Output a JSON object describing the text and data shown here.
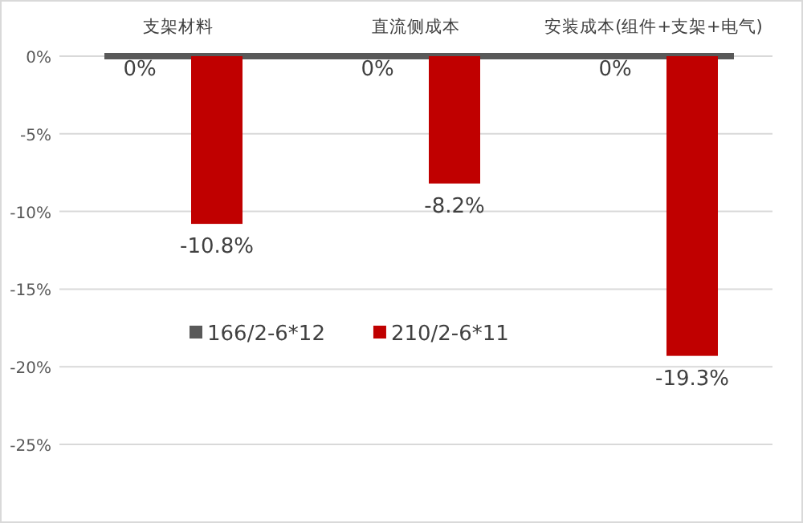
{
  "chart_data": {
    "type": "bar",
    "categories": [
      "支架材料",
      "直流侧成本",
      "安装成本(组件+支架+电气)"
    ],
    "series": [
      {
        "name": "166/2-6*12",
        "color": "#595959",
        "values": [
          0,
          0,
          0
        ],
        "value_labels": [
          "0%",
          "0%",
          "0%"
        ]
      },
      {
        "name": "210/2-6*11",
        "color": "#c00000",
        "values": [
          -10.8,
          -8.2,
          -19.3
        ],
        "value_labels": [
          "-10.8%",
          "-8.2%",
          "-19.3%"
        ]
      }
    ],
    "ylim": [
      -25,
      0
    ],
    "yticks": [
      {
        "value": 0,
        "label": "0%"
      },
      {
        "value": -5,
        "label": "-5%"
      },
      {
        "value": -10,
        "label": "-10%"
      },
      {
        "value": -15,
        "label": "-15%"
      },
      {
        "value": -20,
        "label": "-20%"
      },
      {
        "value": -25,
        "label": "-25%"
      }
    ],
    "grid": "y",
    "legend": "bottom left"
  }
}
